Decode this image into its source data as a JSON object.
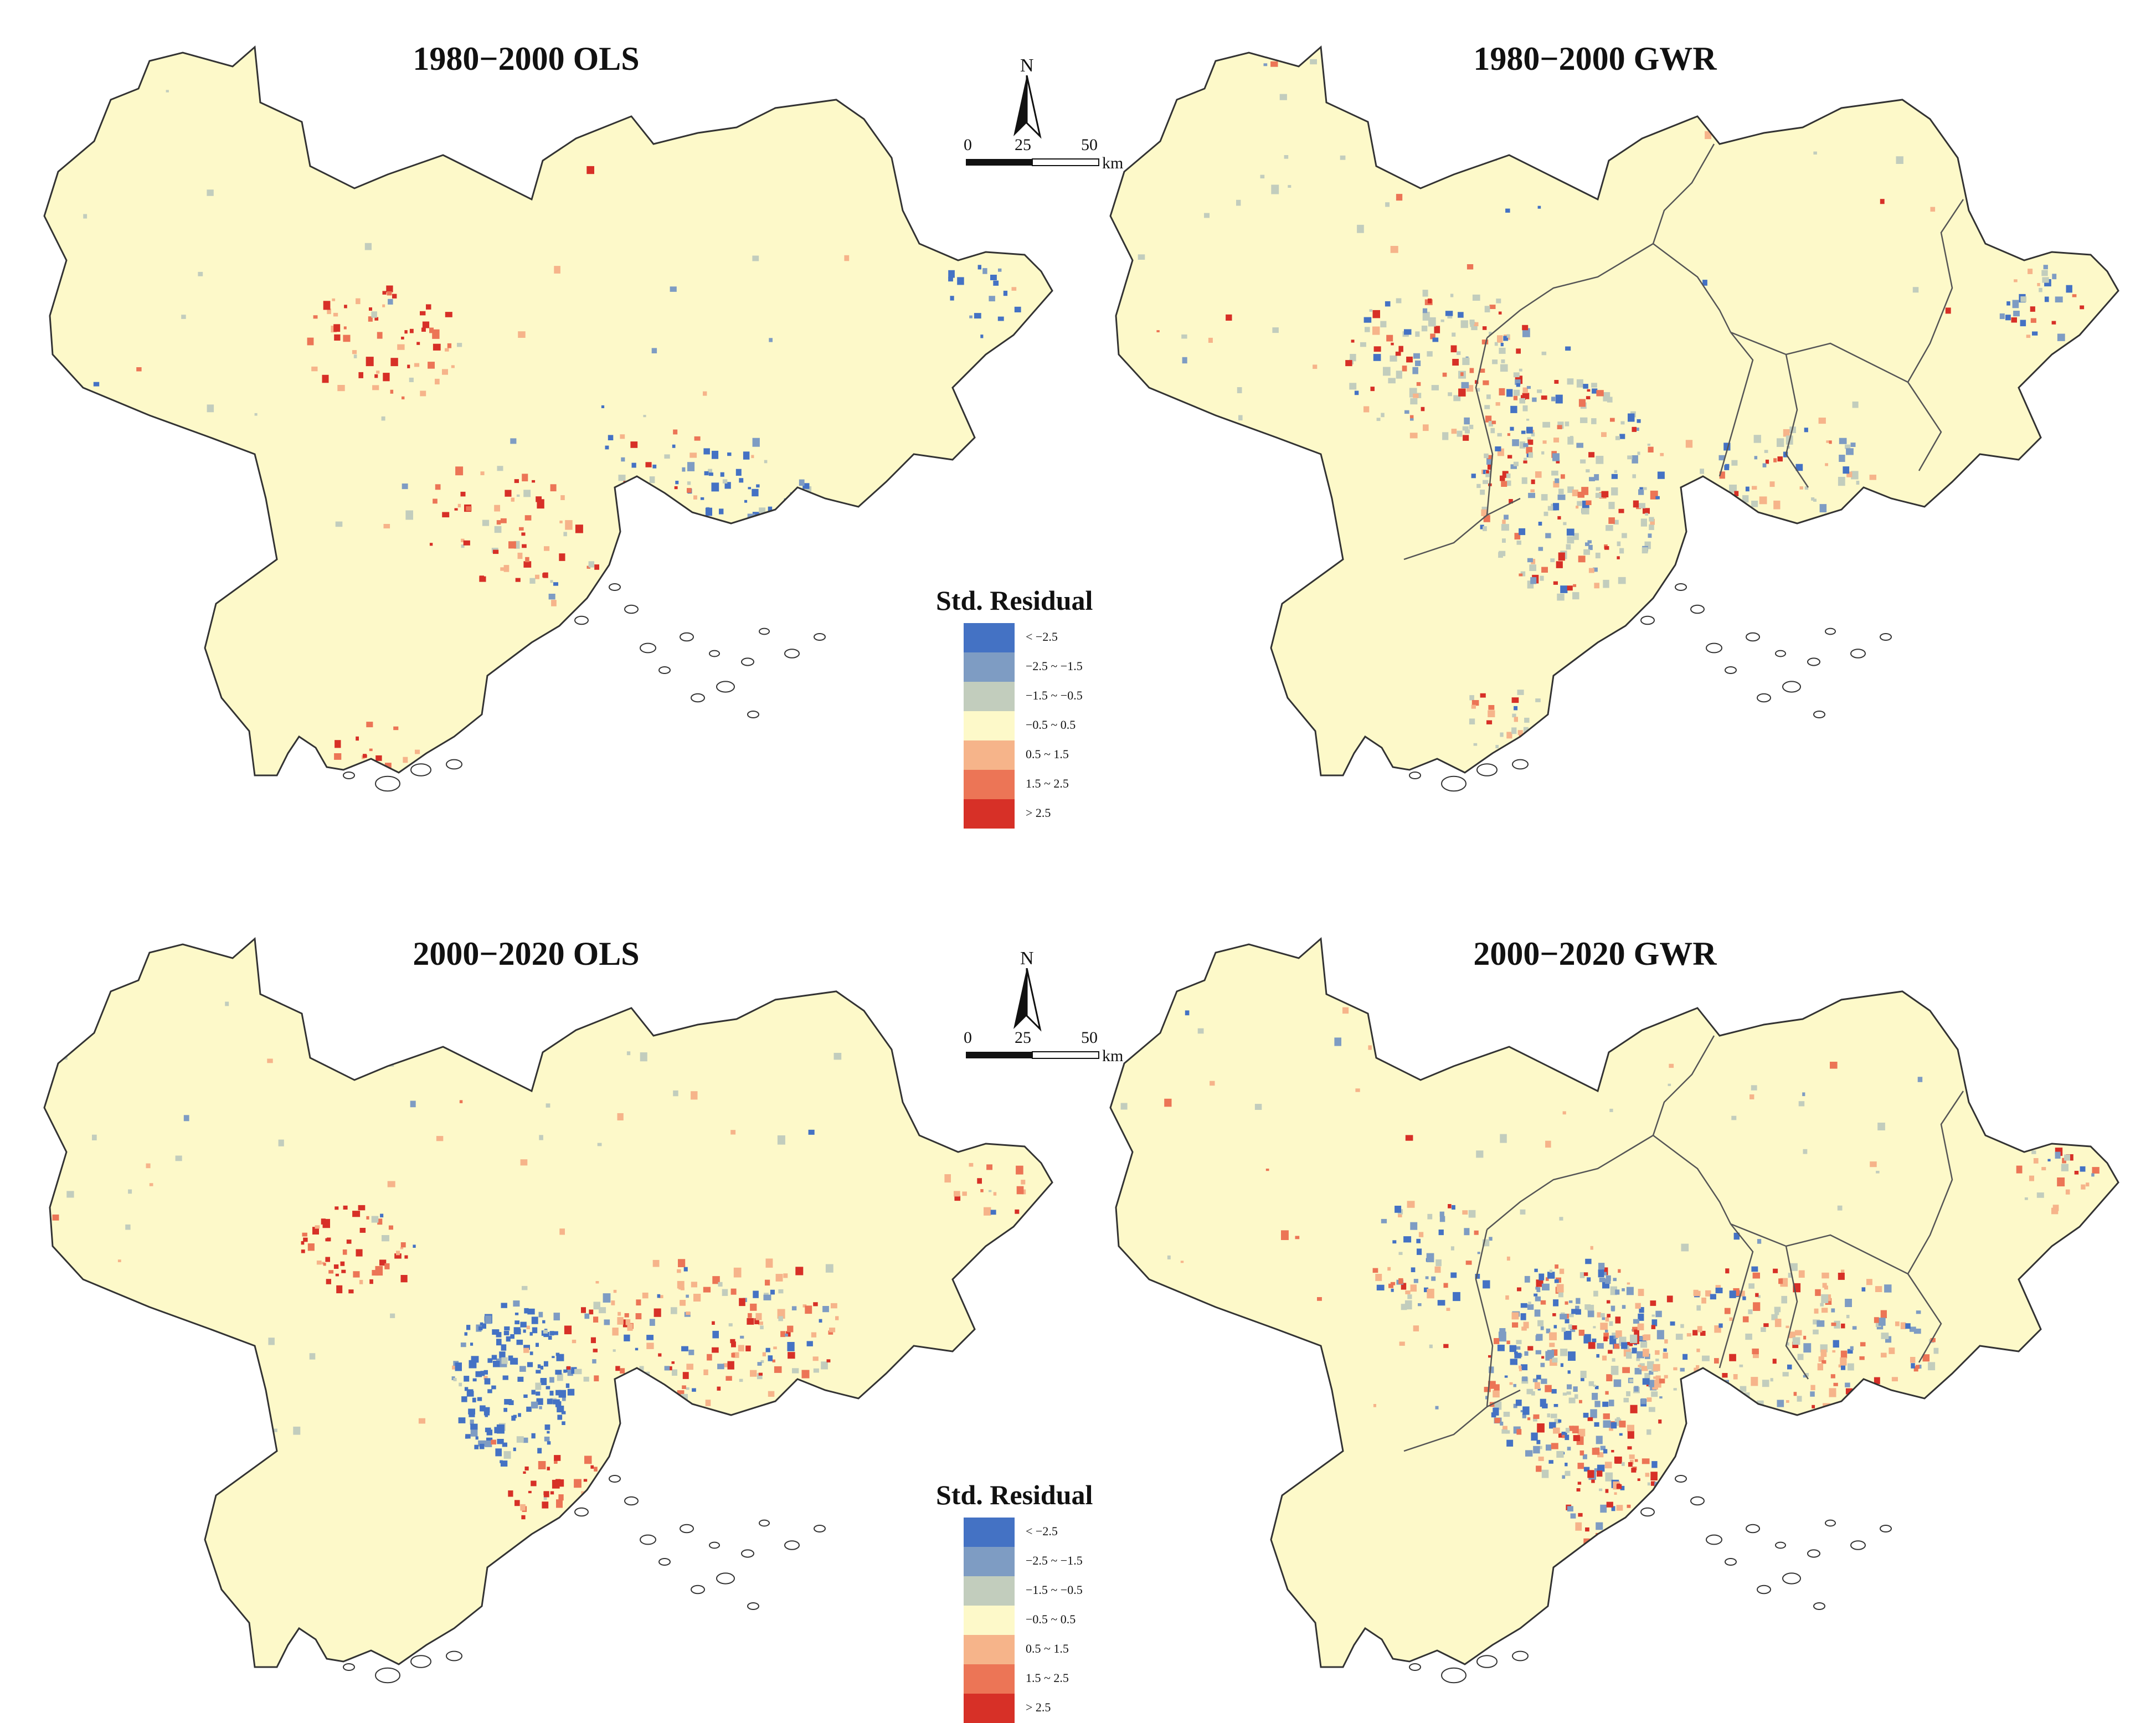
{
  "maps": [
    {
      "title": "1980−2000 OLS",
      "model": "OLS",
      "boundaries": false,
      "pattern": "ols1"
    },
    {
      "title": "1980−2000 GWR",
      "model": "GWR",
      "boundaries": true,
      "pattern": "gwr1"
    },
    {
      "title": "2000−2020 OLS",
      "model": "OLS",
      "boundaries": false,
      "pattern": "ols2"
    },
    {
      "title": "2000−2020 GWR",
      "model": "GWR",
      "boundaries": true,
      "pattern": "gwr2"
    }
  ],
  "north_arrow": {
    "label": "N"
  },
  "scale_bar": {
    "ticks": [
      "0",
      "25",
      "50"
    ],
    "unit": "km"
  },
  "legend": {
    "title": "Std. Residual",
    "classes": [
      {
        "label": "< −2.5",
        "color": "#4472c4"
      },
      {
        "label": "−2.5 ~ −1.5",
        "color": "#7e9cc3"
      },
      {
        "label": "−1.5 ~ −0.5",
        "color": "#c2cdbd"
      },
      {
        "label": "−0.5 ~ 0.5",
        "color": "#fdf9c9"
      },
      {
        "label": "0.5 ~ 1.5",
        "color": "#f6b48a"
      },
      {
        "label": "1.5 ~ 2.5",
        "color": "#ec7556"
      },
      {
        "label": "> 2.5",
        "color": "#d73027"
      }
    ]
  }
}
